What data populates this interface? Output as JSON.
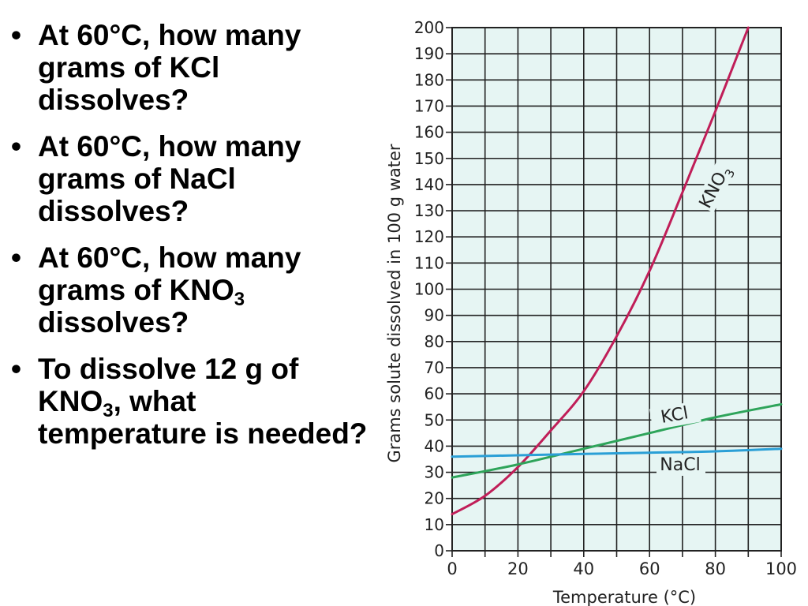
{
  "bullet_char": "•",
  "questions": [
    {
      "parts": [
        "At 60°C, how many grams of KCl dissolves?"
      ]
    },
    {
      "parts": [
        "At 60°C, how many grams of NaCl dissolves?"
      ]
    },
    {
      "parts": [
        "At 60°C, how many grams of KNO",
        "3",
        " dissolves?"
      ]
    },
    {
      "parts": [
        "To dissolve 12 g of KNO",
        "3",
        ", what temperature is needed?"
      ]
    }
  ],
  "chart_data": {
    "type": "line",
    "xlabel": "Temperature (°C)",
    "ylabel": "Grams solute dissolved in 100 g water",
    "xlim": [
      0,
      100
    ],
    "ylim": [
      0,
      200
    ],
    "xticks": [
      0,
      20,
      40,
      60,
      80,
      100
    ],
    "yticks": [
      0,
      10,
      20,
      30,
      40,
      50,
      60,
      70,
      80,
      90,
      100,
      110,
      120,
      130,
      140,
      150,
      160,
      170,
      180,
      190,
      200
    ],
    "grid": true,
    "background": "#e6f5f3",
    "series": [
      {
        "name": "KNO3",
        "label_main": "KNO",
        "label_sub": "3",
        "color": "#c01e58",
        "x": [
          0,
          10,
          20,
          30,
          40,
          50,
          60,
          70,
          80,
          90
        ],
        "y": [
          14,
          21,
          32,
          46,
          61,
          82,
          107,
          137,
          168,
          200
        ]
      },
      {
        "name": "KCl",
        "label_main": "KCl",
        "label_sub": "",
        "color": "#2ea45a",
        "x": [
          0,
          20,
          40,
          60,
          80,
          100
        ],
        "y": [
          28,
          33,
          39,
          45,
          51,
          56
        ]
      },
      {
        "name": "NaCl",
        "label_main": "NaCl",
        "label_sub": "",
        "color": "#2a9fd6",
        "x": [
          0,
          20,
          40,
          60,
          80,
          100
        ],
        "y": [
          36,
          36.5,
          37,
          37.5,
          38,
          39
        ]
      }
    ]
  }
}
